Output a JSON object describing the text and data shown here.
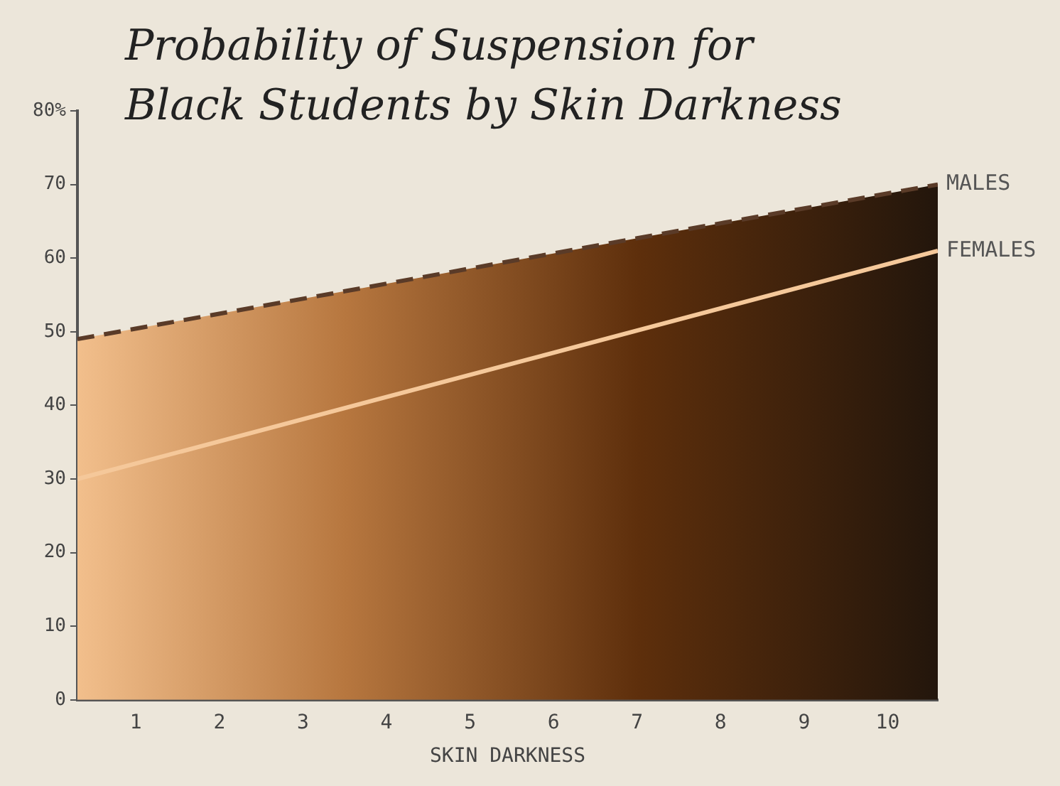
{
  "chart_data": {
    "type": "area",
    "title": "Probability of Suspension for Black Students by Skin Darkness",
    "xlabel": "SKIN DARKNESS",
    "xlim": [
      0.3,
      10.6
    ],
    "xticks": [
      1,
      2,
      3,
      4,
      5,
      6,
      7,
      8,
      9,
      10
    ],
    "ylim": [
      0,
      80
    ],
    "yticks": [
      0,
      10,
      20,
      30,
      40,
      50,
      60,
      70,
      {
        "value": 80,
        "label": "80%"
      }
    ],
    "grid": false,
    "legend": false,
    "series": [
      {
        "name": "MALES",
        "line_style": "dashed",
        "color": "#5a3b28",
        "x": [
          0.3,
          3.5,
          7,
          10.6
        ],
        "values": [
          49,
          55.5,
          62.7,
          70
        ],
        "colors": [
          "#f2bf8c",
          "#b7773f",
          "#5e2f0c",
          "#23160c"
        ]
      },
      {
        "name": "FEMALES",
        "type": "line",
        "line_style": "solid",
        "color": "#f5c89a",
        "x": [
          0.3,
          10.6
        ],
        "values": [
          30,
          61
        ]
      }
    ]
  }
}
